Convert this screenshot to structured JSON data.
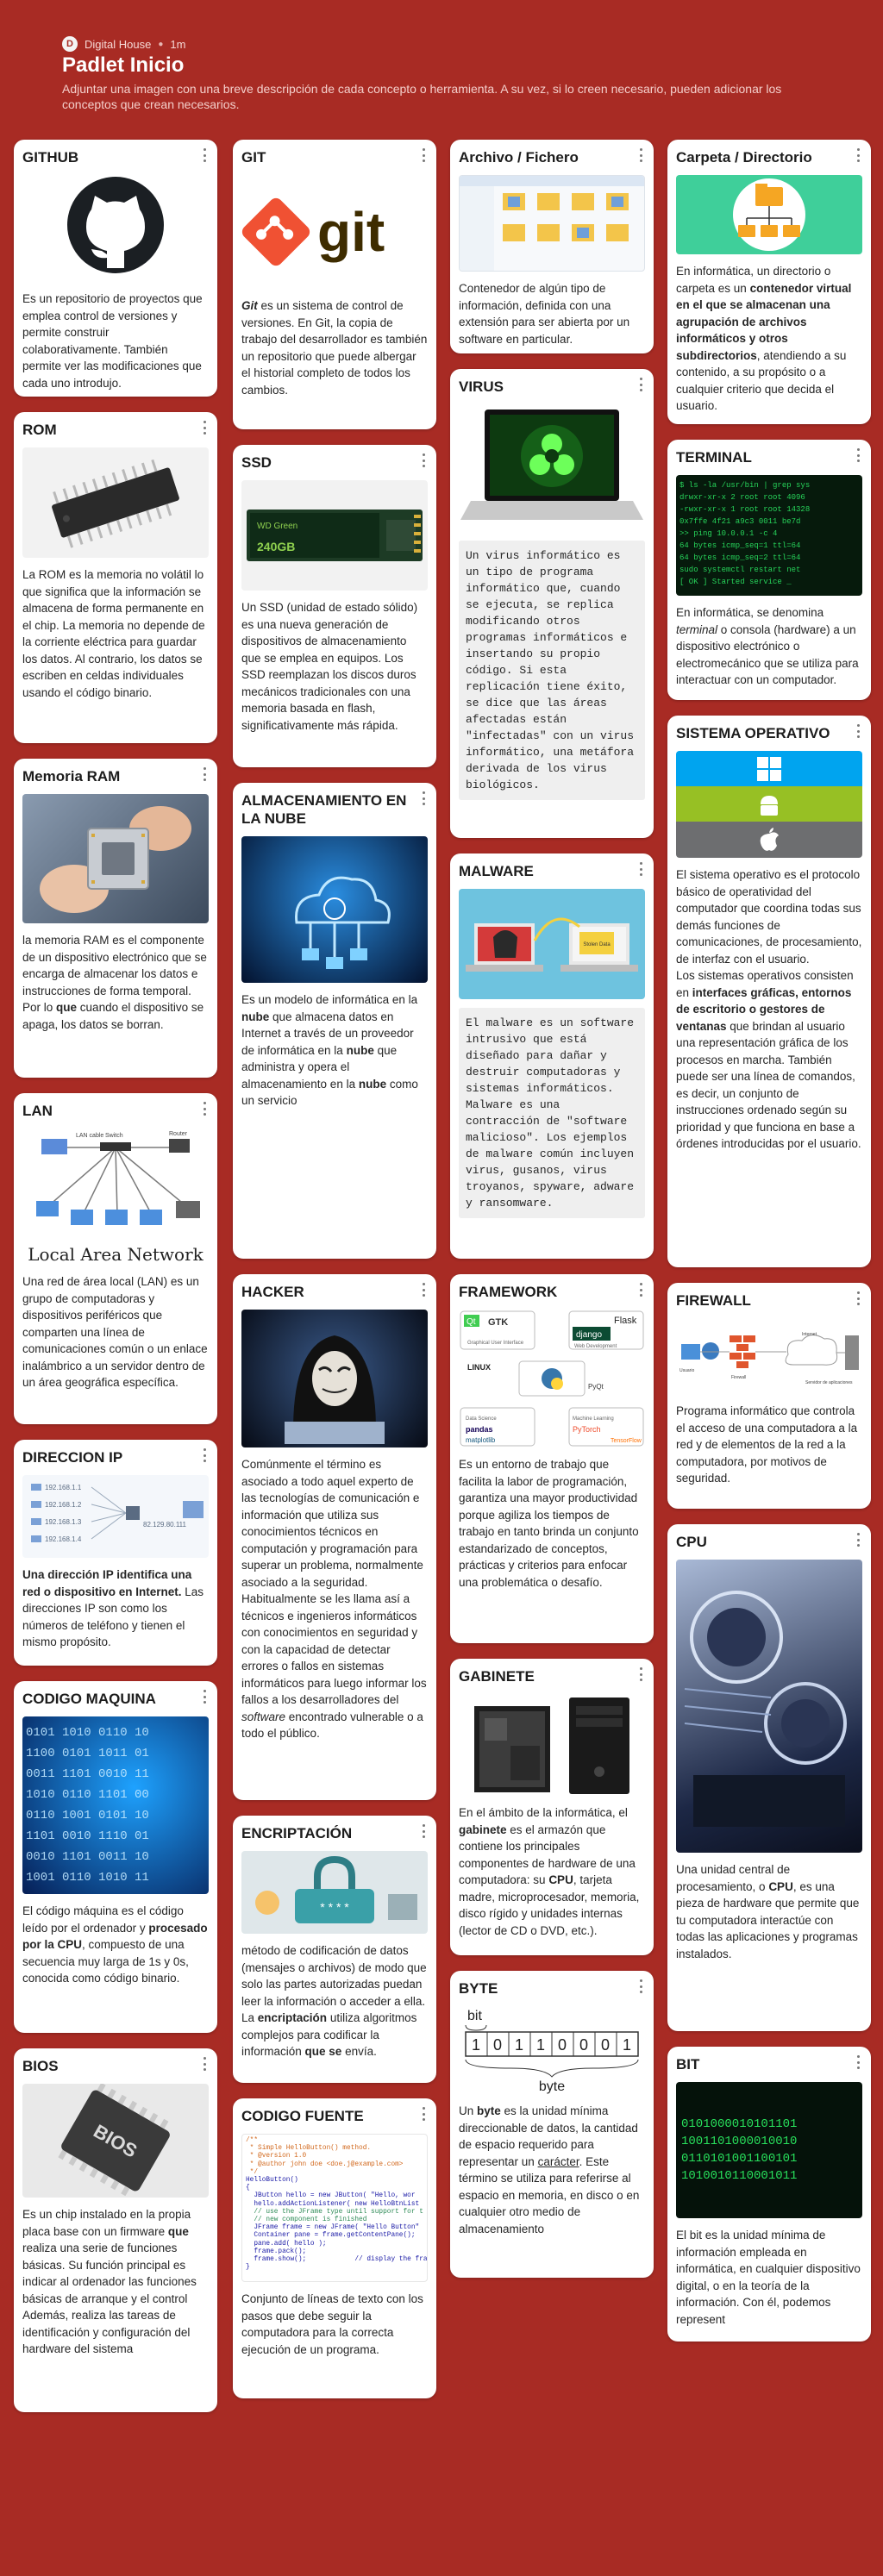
{
  "header": {
    "author": "Digital House",
    "time": "1m",
    "title": "Padlet Inicio",
    "description": "Adjuntar una imagen con una breve descripción de cada concepto o herramienta. A su vez, si lo creen necesario, pueden adicionar los conceptos que crean necesarios."
  },
  "cards": {
    "github": {
      "title": "GITHUB",
      "icon": "github-logo-icon",
      "text": "Es un repositorio de proyectos que emplea control de versiones y permite construir colaborativamente. También permite ver las modificaciones que cada uno introdujo."
    },
    "rom": {
      "title": "ROM",
      "icon": "rom-chip-icon",
      "text": "La ROM es la memoria no volátil lo que significa que la información se almacena de forma permanente en el chip. La memoria no depende de la corriente eléctrica para guardar los datos. Al contrario, los datos se escriben en celdas individuales usando el código binario."
    },
    "ram": {
      "title": "Memoria RAM",
      "icon": "ram-chip-icon",
      "text_1": " la memoria RAM es el componente de un dispositivo electrónico que se encarga de almacenar los datos e instrucciones de forma temporal. Por lo ",
      "text_bold": "que",
      "text_2": " cuando el dispositivo se apaga, los datos se borran."
    },
    "lan": {
      "title": "LAN",
      "icon": "lan-network-icon",
      "caption": "Local Area Network",
      "labels": [
        "LAN cable",
        "Switch",
        "Router"
      ],
      "text": "Una red de área local (LAN) es un grupo de computadoras y dispositivos periféricos que comparten una línea de comunicaciones común o un enlace inalámbrico a un servidor dentro de un área geográfica específica."
    },
    "ip": {
      "title": "DIRECCION IP",
      "icon": "ip-address-icon",
      "ips": [
        "192.168.1.1",
        "192.168.1.2",
        "192.168.1.3",
        "192.168.1.4"
      ],
      "public_ip": "82.129.80.111",
      "text_bold": "Una dirección IP identifica una red o dispositivo en Internet.",
      "text": " Las direcciones IP son como los números de teléfono y tienen el mismo propósito."
    },
    "machine": {
      "title": "CODIGO MAQUINA",
      "icon": "binary-code-icon",
      "text_1": "El código máquina es el código leído por el ordenador y ",
      "text_bold": "procesado por la CPU",
      "text_2": ", compuesto de una secuencia muy larga de 1s y 0s, conocida como código binario."
    },
    "bios": {
      "title": "BIOS",
      "icon": "bios-chip-icon",
      "chip_label": "BIOS",
      "text_1": "Es un chip instalado en la propia placa base con un firmware ",
      "text_bold": "que",
      "text_2": " realiza una serie de funciones básicas. Su función principal es indicar al ordenador las funciones básicas de arranque y el control Además, realiza las tareas de identificación y configuración del hardware del sistema"
    },
    "git": {
      "title": "GIT",
      "icon": "git-logo-icon",
      "logo_text": "git",
      "text_em": "Git",
      "text": " es un sistema de control de versiones. En Git, la copia de trabajo del desarrollador es también un repositorio que puede albergar el historial completo de todos los cambios."
    },
    "ssd": {
      "title": "SSD",
      "icon": "ssd-drive-icon",
      "brand": "WD Green",
      "capacity": "240GB",
      "text": "Un SSD (unidad de estado sólido) es una nueva generación de dispositivos de almacenamiento que se emplea en equipos. Los SSD reemplazan los discos duros mecánicos tradicionales con una memoria basada en flash, significativamente más rápida."
    },
    "cloud": {
      "title": "ALMACENAMIENTO EN LA NUBE",
      "icon": "cloud-storage-icon",
      "t1": "Es un modelo de informática en la ",
      "b1": "nube",
      "t2": " que almacena datos en Internet a través de un proveedor de informática en la ",
      "b2": "nube",
      "t3": " que administra y opera el almacenamiento en la ",
      "b3": "nube",
      "t4": " como un servicio"
    },
    "hacker": {
      "title": "HACKER",
      "icon": "hacker-icon",
      "t1": "Comúnmente el término es asociado a todo aquel experto de las tecnologías de comunicación e información que utiliza sus conocimientos técnicos en computación y programación para superar un problema, normalmente asociado a la seguridad. Habitualmente se les llama así a técnicos e ingenieros informáticos con conocimientos en seguridad y con la capacidad de detectar errores o fallos en sistemas informáticos para luego informar los fallos a los desarrolladores del ",
      "em": "software",
      "t2": " encontrado vulnerable o a todo el público."
    },
    "encrypt": {
      "title": "ENCRIPTACIÓN",
      "icon": "padlock-icon",
      "password_mask": "* * * *",
      "t1": "método de codificación de datos (mensajes o archivos) de modo que solo las partes autorizadas puedan leer la información o acceder a ella. La ",
      "b1": "encriptación",
      "t2": " utiliza algoritmos complejos para codificar la información ",
      "b2": "que se",
      "t3": " envía."
    },
    "source": {
      "title": "CODIGO FUENTE",
      "icon": "source-code-icon",
      "code_lines": [
        "/**",
        " * Simple HelloButton() method.",
        " * @version 1.0",
        " * @author john doe <doe.j@example.com>",
        " */",
        "HelloButton()",
        "{",
        "  JButton hello = new JButton( \"Hello, wor",
        "  hello.addActionListener( new HelloBtnList",
        "",
        "  // use the JFrame type until support for t",
        "  // new component is finished",
        "  JFrame frame = new JFrame( \"Hello Button\"",
        "  Container pane = frame.getContentPane();",
        "  pane.add( hello );",
        "  frame.pack();",
        "  frame.show();            // display the fra",
        "}"
      ],
      "text": "Conjunto de líneas de texto con los pasos que debe seguir la computadora para la correcta ejecución de un programa."
    },
    "file": {
      "title": "Archivo / Fichero",
      "icon": "file-explorer-icon",
      "text": "Contenedor de algún tipo de información, definida con una extensión para ser abierta por un software en particular."
    },
    "virus": {
      "title": "VIRUS",
      "icon": "biohazard-laptop-icon",
      "text": "Un virus informático es un tipo de programa informático que, cuando se ejecuta, se replica modificando otros programas informáticos e insertando su propio código. Si esta replicación tiene éxito, se dice que las áreas afectadas están \"infectadas\" con un virus informático, una metáfora derivada de los virus biológicos."
    },
    "malware": {
      "title": "MALWARE",
      "icon": "malware-icon",
      "stolen_label": "Stolen Data",
      "text": "El malware es un software intrusivo que está diseñado para dañar y destruir computadoras y sistemas informáticos. Malware es una contracción de \"software malicioso\". Los ejemplos de malware común incluyen virus, gusanos, virus troyanos, spyware, adware y ransomware."
    },
    "framework": {
      "title": "FRAMEWORK",
      "icon": "frameworks-collage-icon",
      "logos": [
        "Qt",
        "GTK",
        "Flask",
        "django",
        "LINUX",
        "PyQt",
        "pandas",
        "matplotlib",
        "PyTorch",
        "TensorFlow"
      ],
      "sections": [
        "Graphical User Interface",
        "Web Development",
        "Data Science",
        "Machine Learning"
      ],
      "text": "Es un entorno de trabajo que facilita la labor de programación, garantiza una mayor productividad porque agiliza los tiempos de trabajo en tanto brinda un conjunto estandarizado de conceptos, prácticas y criterios para enfocar una problemática o desafío."
    },
    "cabinet": {
      "title": "GABINETE",
      "icon": "pc-case-icon",
      "t1": "En el ámbito de la informática, el ",
      "b1": "gabinete",
      "t2": " es el armazón que contiene los principales componentes de hardware de una computadora: su ",
      "b2": "CPU",
      "t3": ", tarjeta madre, microprocesador, memoria, disco rígido y unidades internas (lector de CD o DVD, etc.)."
    },
    "byte": {
      "title": "BYTE",
      "icon": "byte-diagram-icon",
      "bit_label": "bit",
      "bits": [
        "1",
        "0",
        "1",
        "1",
        "0",
        "0",
        "0",
        "1"
      ],
      "byte_label": "byte",
      "t1": "Un ",
      "b1": "byte",
      "t2": " es la unidad mínima direccionable de datos, la cantidad de espacio requerido para representar un ",
      "u1": "carácter",
      "t3": ". Este término se utiliza para referirse al espacio en memoria, en disco o en cualquier otro medio de almacenamiento"
    },
    "folder": {
      "title": "Carpeta / Directorio",
      "icon": "folder-tree-icon",
      "t1": "En informática, un directorio o carpeta es un ",
      "b1": "contenedor virtual en el que se almacenan una agrupación de archivos informáticos y otros subdirectorios",
      "t2": ", atendiendo a su contenido, a su propósito o a cualquier criterio que decida el usuario."
    },
    "terminal": {
      "title": "TERMINAL",
      "icon": "terminal-screen-icon",
      "t1": "En informática, se denomina ",
      "em": "terminal",
      "t2": " o consola (hardware) a un dispositivo electrónico o electromecánico que se utiliza para interactuar con un computador."
    },
    "os": {
      "title": "SISTEMA OPERATIVO",
      "icon": "os-logos-icon",
      "colors": [
        "#00a4ef",
        "#97c024",
        "#6d6e70"
      ],
      "t1": "El sistema operativo es el protocolo básico de operatividad del computador que coordina todas sus demás funciones de comunicaciones, de procesamiento, de interfaz con el usuario.",
      "t2": "Los sistemas operativos consisten en ",
      "b1": "interfaces gráficas, entornos de escritorio o gestores de ventanas",
      "t3": " que brindan al usuario una representación gráfica de los procesos en marcha. También puede ser una línea de comandos, es decir, un conjunto de instrucciones ordenado según su prioridad y que funciona en base a órdenes introducidas por el usuario."
    },
    "firewall": {
      "title": "FIREWALL",
      "icon": "firewall-diagram-icon",
      "labels": [
        "Usuario",
        "Firewall",
        "Internet",
        "Servidor de aplicaciones"
      ],
      "text": "Programa informático que controla el acceso de una computadora a la red y de elementos de la red a la computadora, por motivos de seguridad."
    },
    "cpu": {
      "title": "CPU",
      "icon": "cpu-pc-icon",
      "t1": "Una unidad central de procesamiento, o ",
      "b1": "CPU",
      "t2": ", es una pieza de hardware que permite que tu computadora interactúe con todas las aplicaciones y programas instalados."
    },
    "bit": {
      "title": "BIT",
      "icon": "binary-matrix-icon",
      "rows": [
        "0101000010101101",
        "1001101000010010",
        "0110101001100101",
        "1010010110001011"
      ],
      "text": "El bit es la unidad mínima de información empleada en informática, en cualquier dispositivo digital, o en la teoría de la información. Con él, podemos represent"
    }
  },
  "colors": {
    "background": "#a82b24",
    "card": "#ffffff",
    "accent_text": "#f4cfcb"
  }
}
